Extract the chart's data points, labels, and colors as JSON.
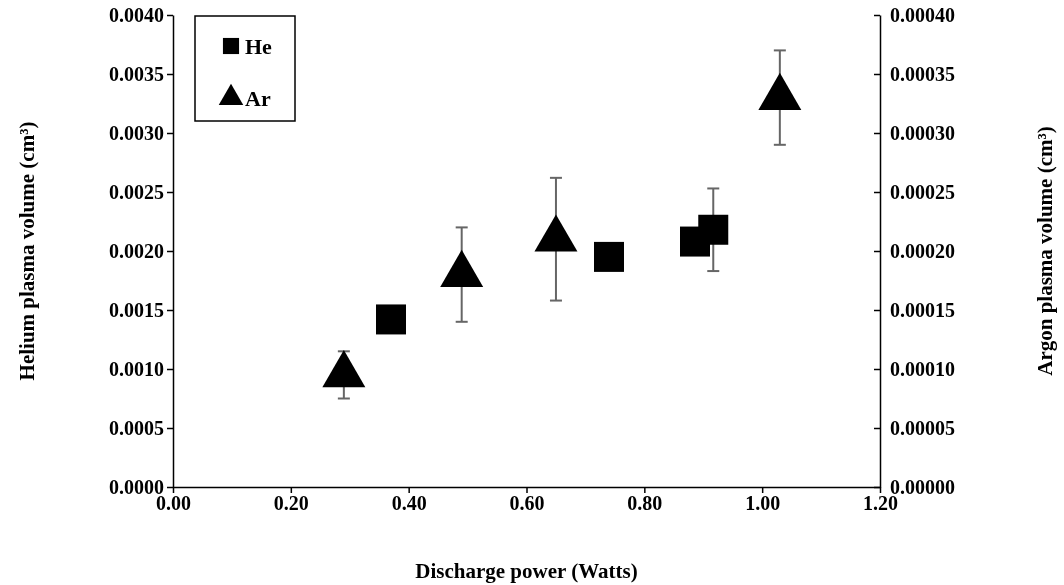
{
  "chart_data": {
    "type": "scatter",
    "xlabel": "Discharge power (Watts)",
    "ylabel": "Helium plasma volume (cm³)",
    "y2label": "Argon plasma volume (cm³)",
    "xlim": [
      0,
      1.2
    ],
    "xticks": [
      {
        "value": 0,
        "label": "0.00"
      },
      {
        "value": 0.2,
        "label": "0.20"
      },
      {
        "value": 0.4,
        "label": "0.40"
      },
      {
        "value": 0.6,
        "label": "0.60"
      },
      {
        "value": 0.8,
        "label": "0.80"
      },
      {
        "value": 1,
        "label": "1.00"
      },
      {
        "value": 1.2,
        "label": "1.20"
      }
    ],
    "ylim": [
      0,
      0.004
    ],
    "yticks": [
      {
        "value": 0,
        "label": "0.0000"
      },
      {
        "value": 0.0005,
        "label": "0.0005"
      },
      {
        "value": 0.001,
        "label": "0.0010"
      },
      {
        "value": 0.0015,
        "label": "0.0015"
      },
      {
        "value": 0.002,
        "label": "0.0020"
      },
      {
        "value": 0.0025,
        "label": "0.0025"
      },
      {
        "value": 0.003,
        "label": "0.0030"
      },
      {
        "value": 0.0035,
        "label": "0.0035"
      },
      {
        "value": 0.004,
        "label": "0.0040"
      }
    ],
    "y2lim": [
      0,
      0.0004
    ],
    "y2ticks": [
      {
        "value": 0,
        "label": "0.00000"
      },
      {
        "value": 5e-05,
        "label": "0.00005"
      },
      {
        "value": 0.0001,
        "label": "0.00010"
      },
      {
        "value": 0.00015,
        "label": "0.00015"
      },
      {
        "value": 0.0002,
        "label": "0.00020"
      },
      {
        "value": 0.00025,
        "label": "0.00025"
      },
      {
        "value": 0.0003,
        "label": "0.00030"
      },
      {
        "value": 0.00035,
        "label": "0.00035"
      },
      {
        "value": 0.0004,
        "label": "0.00040"
      }
    ],
    "grid": false,
    "legend": "top left",
    "series": [
      {
        "name": "He",
        "color": "#000000",
        "marker": "square",
        "x": [
          0.37,
          0.74,
          0.886,
          0.917
        ],
        "values": [
          0.00142,
          0.00195,
          0.00208,
          0.00218
        ],
        "errors": [
          null,
          null,
          null,
          0.00035
        ]
      },
      {
        "name": "Ar",
        "color": "#000000",
        "marker": "triangle",
        "axis": "y2",
        "x": [
          0.29,
          0.49,
          0.65,
          1.03
        ],
        "values": [
          9.5e-05,
          0.00018,
          0.00021,
          0.00033
        ],
        "errors": [
          2e-05,
          4e-05,
          5.2e-05,
          4e-05
        ]
      }
    ]
  }
}
